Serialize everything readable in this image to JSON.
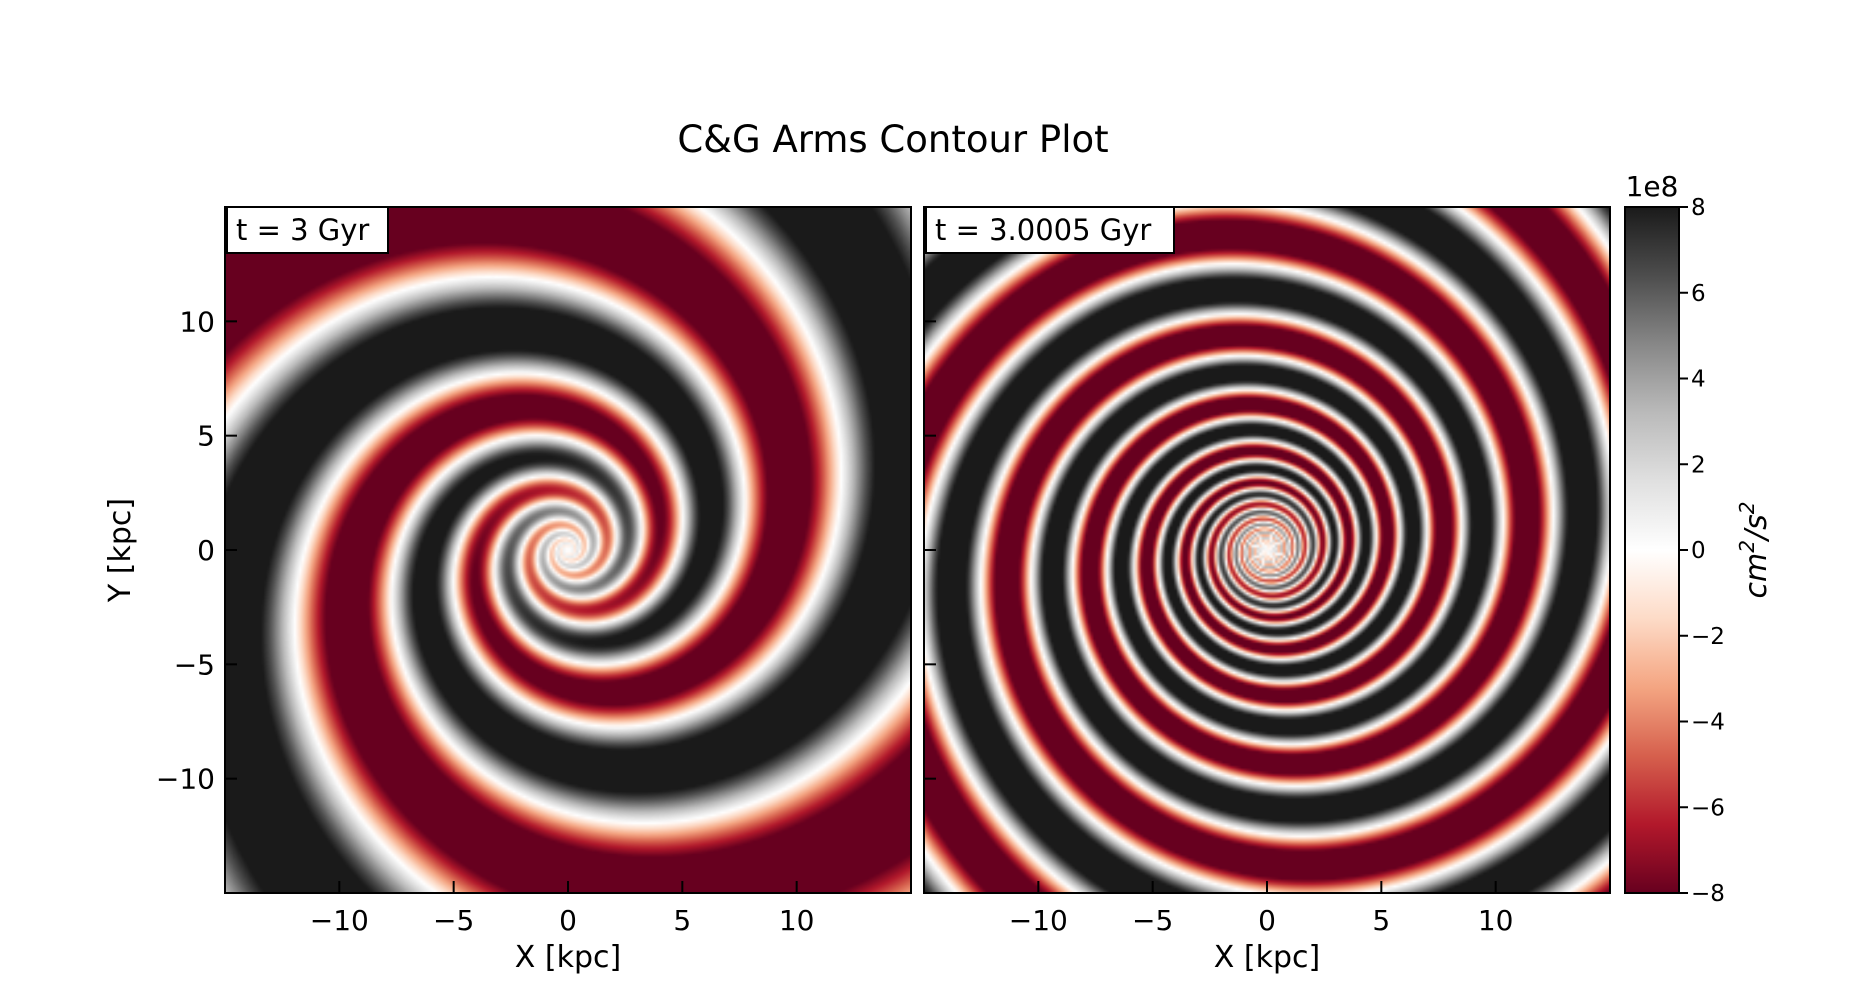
{
  "chart_data": {
    "type": "heatmap",
    "title": "C&G Arms Contour Plot",
    "colormap": "RdGy",
    "panels": [
      {
        "label": "t = 3 Gyr",
        "xlabel": "X [kpc]",
        "ylabel": "Y [kpc]",
        "xlim": [
          -15,
          15
        ],
        "ylim": [
          -15,
          15
        ],
        "xticks": [
          -10,
          -5,
          0,
          5,
          10
        ],
        "yticks": [
          -10,
          -5,
          0,
          5,
          10
        ],
        "xticklabels": [
          "−10",
          "−5",
          "0",
          "5",
          "10"
        ],
        "yticklabels": [
          "−10",
          "−5",
          "0",
          "5",
          "10"
        ],
        "arms": 2,
        "pitch_angle_deg": 15.5,
        "phase_deg": -30,
        "amplitude_growth_radius_kpc": 3,
        "max_amplitude": 800000000.0
      },
      {
        "label": "t = 3.0005 Gyr",
        "xlabel": "X [kpc]",
        "ylabel": "",
        "xlim": [
          -15,
          15
        ],
        "ylim": [
          -15,
          15
        ],
        "xticks": [
          -10,
          -5,
          0,
          5,
          10
        ],
        "yticks": [
          -10,
          -5,
          0,
          5,
          10
        ],
        "xticklabels": [
          "−10",
          "−5",
          "0",
          "5",
          "10"
        ],
        "yticklabels": [],
        "arms": 2,
        "pitch_angle_deg": 7,
        "phase_deg": 20,
        "amplitude_growth_radius_kpc": 2,
        "max_amplitude": 800000000.0
      }
    ],
    "colorbar": {
      "label": "cm²/s²",
      "label_base": "cm",
      "label_exp1": "2",
      "label_mid": "/s",
      "label_exp2": "2",
      "scale_label": "1e8",
      "range": [
        -8,
        8
      ],
      "ticks": [
        8,
        6,
        4,
        2,
        0,
        -2,
        -4,
        -6,
        -8
      ],
      "ticklabels": [
        "8",
        "6",
        "4",
        "2",
        "0",
        "−2",
        "−4",
        "−6",
        "−8"
      ]
    }
  }
}
